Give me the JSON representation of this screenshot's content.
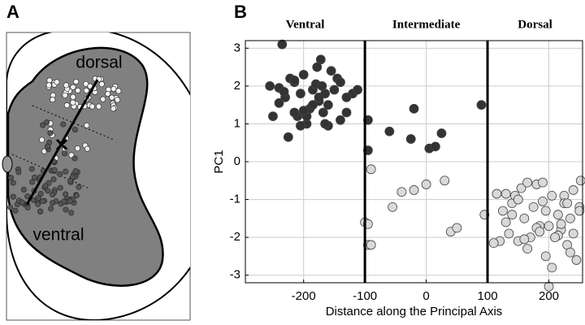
{
  "panel_labels": [
    "A",
    "B"
  ],
  "diagram": {
    "top_label": "dorsal",
    "bottom_label": "ventral"
  },
  "chart_data": {
    "type": "scatter",
    "xlabel": "Distance along the Principal Axis",
    "ylabel": "PC1",
    "regions": [
      "Ventral",
      "Intermediate",
      "Dorsal"
    ],
    "boundaries": [
      -100,
      100
    ],
    "xlim": [
      -295,
      255
    ],
    "ylim": [
      -3.2,
      3.2
    ],
    "xticks": [
      -200,
      -100,
      0,
      100,
      200
    ],
    "yticks": [
      -3,
      -2,
      -1,
      0,
      1,
      2,
      3
    ],
    "grid": true,
    "series": [
      {
        "color": "#333333",
        "x": [
          -255,
          -240,
          -235,
          -230,
          -222,
          -215,
          -210,
          -205,
          -200,
          -195,
          -190,
          -185,
          -180,
          -175,
          -172,
          -170,
          -168,
          -165,
          -160,
          -155,
          -150,
          -145,
          -140,
          -130,
          -120,
          -112,
          -250,
          -240,
          -225,
          -215,
          -205,
          -195,
          -185,
          -175,
          -160,
          -140,
          -232,
          -215,
          -200,
          -178,
          -165,
          -130,
          -95,
          -95,
          -60,
          -20,
          -25,
          5,
          15,
          25,
          90
        ],
        "values": [
          2.0,
          1.95,
          3.1,
          1.7,
          2.2,
          2.1,
          1.2,
          1.8,
          2.3,
          1.0,
          1.4,
          1.9,
          2.05,
          1.6,
          2.7,
          2.0,
          1.3,
          1.8,
          1.5,
          2.4,
          1.9,
          2.2,
          1.1,
          1.3,
          1.8,
          1.9,
          1.2,
          1.55,
          0.65,
          1.3,
          0.95,
          1.2,
          1.5,
          1.7,
          0.95,
          2.1,
          1.85,
          2.15,
          1.35,
          2.5,
          1.0,
          1.7,
          1.1,
          0.3,
          0.8,
          1.4,
          0.6,
          0.35,
          0.4,
          0.75,
          1.5
        ]
      },
      {
        "color": "#d9d9d9",
        "x": [
          -90,
          -100,
          -95,
          -95,
          -90,
          -55,
          -40,
          -20,
          0,
          30,
          40,
          50,
          95,
          115,
          120,
          125,
          130,
          135,
          140,
          145,
          150,
          155,
          160,
          165,
          170,
          175,
          180,
          185,
          190,
          195,
          200,
          205,
          210,
          215,
          220,
          225,
          230,
          235,
          240,
          245,
          250,
          252,
          110,
          130,
          150,
          165,
          180,
          195,
          205,
          215,
          225,
          240,
          250,
          140,
          160,
          185,
          200,
          220,
          235,
          190,
          210,
          230
        ],
        "values": [
          -0.2,
          -1.6,
          -1.65,
          -2.2,
          -2.2,
          -1.2,
          -0.8,
          -0.75,
          -0.6,
          -0.5,
          -1.85,
          -1.75,
          -1.4,
          -0.85,
          -2.1,
          -1.3,
          -0.85,
          -1.9,
          -1.1,
          -0.9,
          -2.1,
          -0.7,
          -1.5,
          -0.55,
          -2.0,
          -1.2,
          -0.6,
          -1.7,
          -0.55,
          -2.5,
          -1.7,
          -0.9,
          -2.0,
          -1.4,
          -1.8,
          -0.9,
          -2.2,
          -1.5,
          -1.9,
          -2.6,
          -1.2,
          -0.5,
          -2.15,
          -1.6,
          -1.0,
          -2.3,
          -1.75,
          -1.3,
          -2.8,
          -1.95,
          -1.1,
          -0.75,
          -1.3,
          -1.4,
          -2.05,
          -1.85,
          -3.3,
          -1.65,
          -2.4,
          -1.05,
          -2.0,
          -1.1
        ]
      }
    ]
  }
}
